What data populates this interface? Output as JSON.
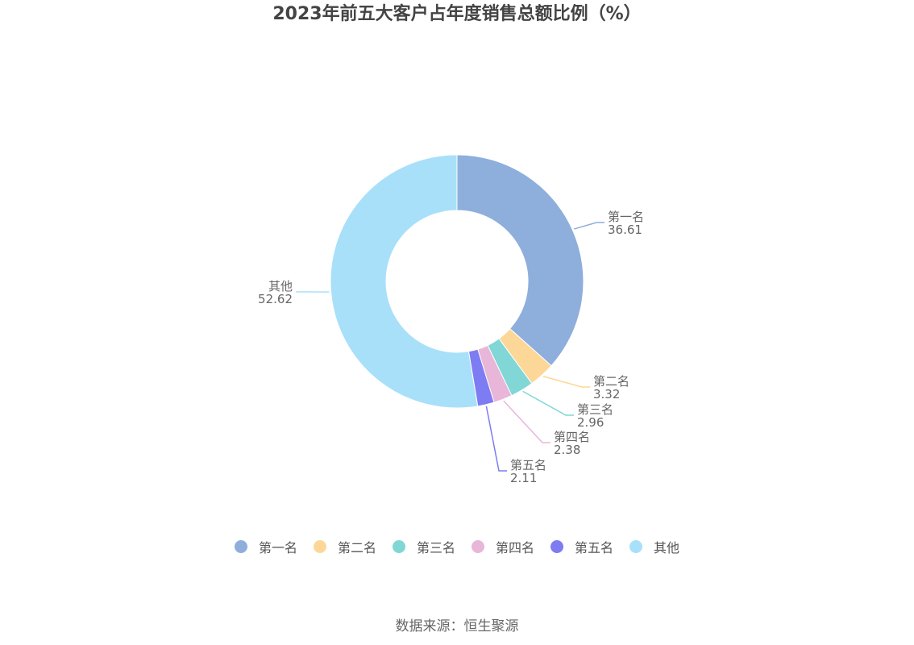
{
  "chart_data": {
    "type": "pie",
    "donut": true,
    "title": "2023年前五大客户占年度销售总额比例（%）",
    "categories": [
      "第一名",
      "第二名",
      "第三名",
      "第四名",
      "第五名",
      "其他"
    ],
    "values": [
      36.61,
      3.32,
      2.96,
      2.38,
      2.11,
      52.62
    ],
    "colors": [
      "#8eaedc",
      "#fdd798",
      "#81d6d6",
      "#e8b6d8",
      "#7d7cf3",
      "#a8e0f9"
    ],
    "legend_position": "bottom"
  },
  "footer": {
    "source": "数据来源：恒生聚源"
  }
}
